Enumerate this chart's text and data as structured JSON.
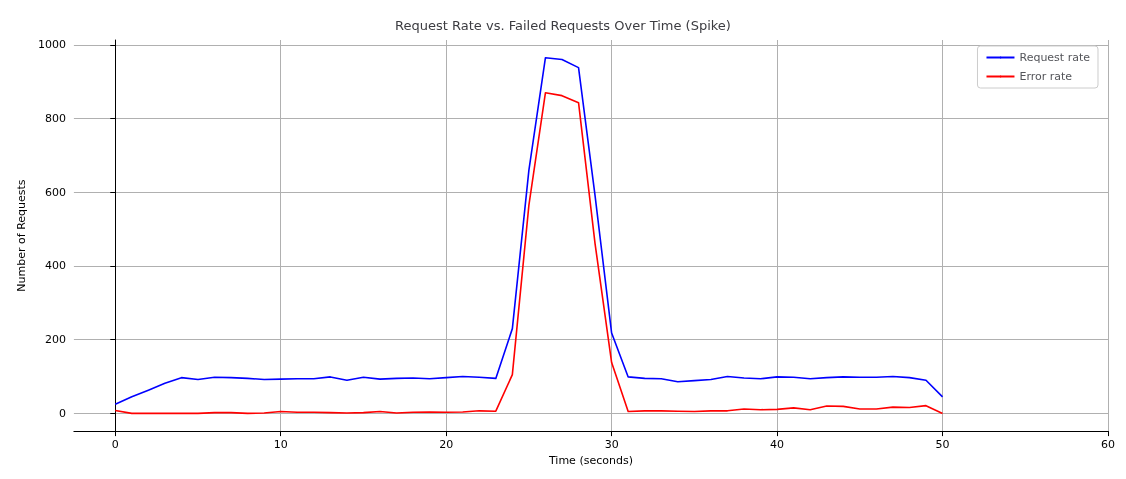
{
  "chart_data": {
    "type": "line",
    "title": "Request Rate vs. Failed Requests Over Time (Spike)",
    "xlabel": "Time (seconds)",
    "ylabel": "Number of Requests",
    "x": [
      0,
      1,
      2,
      3,
      4,
      5,
      6,
      7,
      8,
      9,
      10,
      11,
      12,
      13,
      14,
      15,
      16,
      17,
      18,
      19,
      20,
      21,
      22,
      23,
      24,
      25,
      26,
      27,
      28,
      29,
      30,
      31,
      32,
      33,
      34,
      35,
      36,
      37,
      38,
      39,
      40,
      41,
      42,
      43,
      44,
      45,
      46,
      47,
      48,
      49,
      50
    ],
    "series": [
      {
        "name": "Request rate",
        "color": "#0000ff",
        "values": [
          25,
          45,
          63,
          82,
          97,
          92,
          98,
          97,
          95,
          92,
          93,
          94,
          94,
          99,
          90,
          98,
          93,
          95,
          96,
          94,
          97,
          100,
          98,
          95,
          230,
          660,
          965,
          960,
          938,
          590,
          218,
          99,
          95,
          94,
          86,
          89,
          92,
          100,
          96,
          94,
          99,
          98,
          94,
          97,
          99,
          98,
          98,
          100,
          97,
          90,
          45
        ]
      },
      {
        "name": "Error rate",
        "color": "#ff0000",
        "values": [
          8,
          0,
          0,
          0,
          0,
          0,
          2,
          2,
          0,
          1,
          5,
          3,
          3,
          2,
          1,
          2,
          5,
          1,
          3,
          4,
          3,
          4,
          7,
          6,
          105,
          565,
          870,
          862,
          843,
          460,
          138,
          5,
          7,
          7,
          6,
          5,
          7,
          7,
          12,
          10,
          11,
          15,
          10,
          20,
          19,
          12,
          12,
          17,
          16,
          21,
          0
        ]
      }
    ],
    "xlim": [
      -2.5,
      60
    ],
    "xticks": [
      0,
      10,
      20,
      30,
      40,
      50,
      60
    ],
    "ylim": [
      -48,
      1013
    ],
    "yticks": [
      0,
      200,
      400,
      600,
      800,
      1000
    ],
    "grid": true,
    "legend": "top right",
    "marker": "none",
    "line_style": "solid"
  }
}
